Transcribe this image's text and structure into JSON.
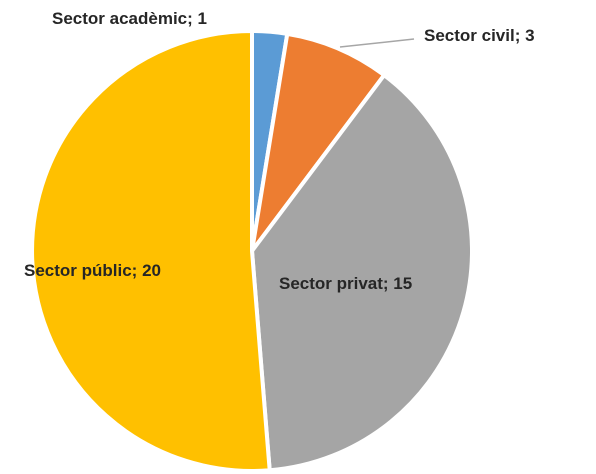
{
  "chart_data": {
    "type": "pie",
    "title": "",
    "start_angle_deg": 0,
    "direction": "clockwise",
    "slices": [
      {
        "label": "Sector acadèmic; 1",
        "category": "Sector acadèmic",
        "value": 1,
        "color": "#5B9BD5"
      },
      {
        "label": "Sector civil; 3",
        "category": "Sector civil",
        "value": 3,
        "color": "#ED7D31"
      },
      {
        "label": "Sector privat; 15",
        "category": "Sector privat",
        "value": 15,
        "color": "#A5A5A5"
      },
      {
        "label": "Sector públic; 20",
        "category": "Sector públic",
        "value": 20,
        "color": "#FFC000"
      }
    ],
    "slice_border_color": "#ffffff",
    "label_color": "#262626",
    "leader_line_color": "#A6A6A6",
    "legend": "none"
  }
}
